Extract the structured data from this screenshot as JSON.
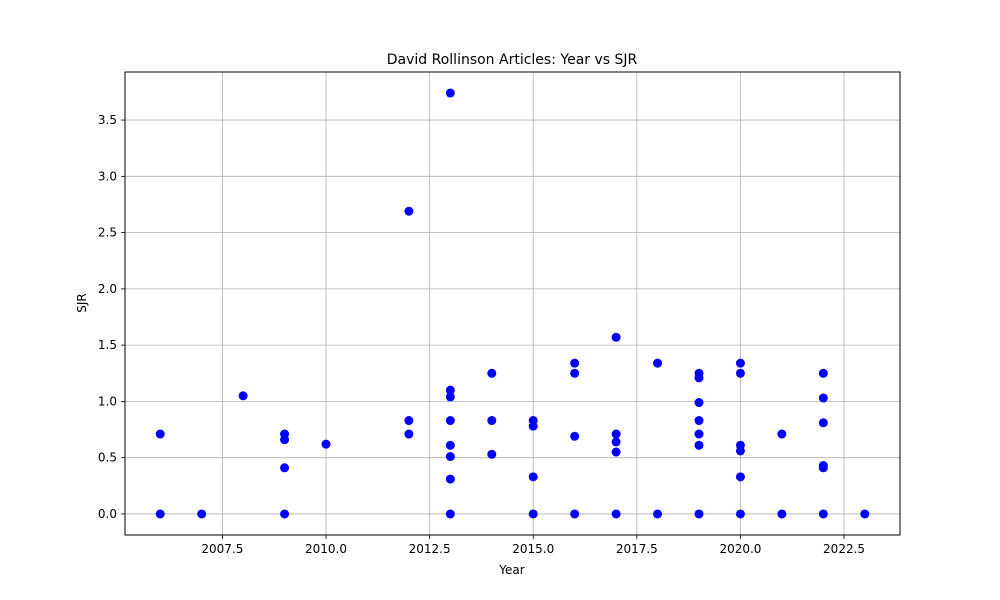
{
  "chart_data": {
    "type": "scatter",
    "title": "David Rollinson Articles: Year vs SJR",
    "xlabel": "Year",
    "ylabel": "SJR",
    "xlim": [
      2005.15,
      2023.85
    ],
    "ylim": [
      -0.187,
      3.927
    ],
    "xticks": [
      2007.5,
      2010.0,
      2012.5,
      2015.0,
      2017.5,
      2020.0,
      2022.5
    ],
    "xtick_labels": [
      "2007.5",
      "2010.0",
      "2012.5",
      "2015.0",
      "2017.5",
      "2020.0",
      "2022.5"
    ],
    "yticks": [
      0.0,
      0.5,
      1.0,
      1.5,
      2.0,
      2.5,
      3.0,
      3.5
    ],
    "ytick_labels": [
      "0.0",
      "0.5",
      "1.0",
      "1.5",
      "2.0",
      "2.5",
      "3.0",
      "3.5"
    ],
    "grid": true,
    "marker_color": "#0000ff",
    "points": [
      {
        "x": 2006,
        "y": 0.71
      },
      {
        "x": 2006,
        "y": 0.0
      },
      {
        "x": 2007,
        "y": 0.0
      },
      {
        "x": 2008,
        "y": 1.05
      },
      {
        "x": 2009,
        "y": 0.71
      },
      {
        "x": 2009,
        "y": 0.66
      },
      {
        "x": 2009,
        "y": 0.41
      },
      {
        "x": 2009,
        "y": 0.0
      },
      {
        "x": 2010,
        "y": 0.62
      },
      {
        "x": 2012,
        "y": 2.69
      },
      {
        "x": 2012,
        "y": 0.83
      },
      {
        "x": 2012,
        "y": 0.71
      },
      {
        "x": 2013,
        "y": 3.74
      },
      {
        "x": 2013,
        "y": 1.1
      },
      {
        "x": 2013,
        "y": 1.04
      },
      {
        "x": 2013,
        "y": 0.83
      },
      {
        "x": 2013,
        "y": 0.61
      },
      {
        "x": 2013,
        "y": 0.51
      },
      {
        "x": 2013,
        "y": 0.31
      },
      {
        "x": 2013,
        "y": 0.0
      },
      {
        "x": 2014,
        "y": 1.25
      },
      {
        "x": 2014,
        "y": 0.83
      },
      {
        "x": 2014,
        "y": 0.53
      },
      {
        "x": 2015,
        "y": 0.83
      },
      {
        "x": 2015,
        "y": 0.78
      },
      {
        "x": 2015,
        "y": 0.33
      },
      {
        "x": 2015,
        "y": 0.0
      },
      {
        "x": 2016,
        "y": 1.34
      },
      {
        "x": 2016,
        "y": 1.25
      },
      {
        "x": 2016,
        "y": 0.69
      },
      {
        "x": 2016,
        "y": 0.0
      },
      {
        "x": 2017,
        "y": 1.57
      },
      {
        "x": 2017,
        "y": 0.71
      },
      {
        "x": 2017,
        "y": 0.64
      },
      {
        "x": 2017,
        "y": 0.55
      },
      {
        "x": 2017,
        "y": 0.0
      },
      {
        "x": 2018,
        "y": 1.34
      },
      {
        "x": 2018,
        "y": 0.0
      },
      {
        "x": 2019,
        "y": 1.25
      },
      {
        "x": 2019,
        "y": 1.21
      },
      {
        "x": 2019,
        "y": 0.99
      },
      {
        "x": 2019,
        "y": 0.83
      },
      {
        "x": 2019,
        "y": 0.71
      },
      {
        "x": 2019,
        "y": 0.61
      },
      {
        "x": 2019,
        "y": 0.0
      },
      {
        "x": 2020,
        "y": 1.34
      },
      {
        "x": 2020,
        "y": 1.25
      },
      {
        "x": 2020,
        "y": 0.61
      },
      {
        "x": 2020,
        "y": 0.56
      },
      {
        "x": 2020,
        "y": 0.33
      },
      {
        "x": 2020,
        "y": 0.0
      },
      {
        "x": 2021,
        "y": 0.71
      },
      {
        "x": 2021,
        "y": 0.0
      },
      {
        "x": 2022,
        "y": 1.25
      },
      {
        "x": 2022,
        "y": 1.03
      },
      {
        "x": 2022,
        "y": 0.81
      },
      {
        "x": 2022,
        "y": 0.43
      },
      {
        "x": 2022,
        "y": 0.41
      },
      {
        "x": 2022,
        "y": 0.0
      },
      {
        "x": 2023,
        "y": 0.0
      }
    ]
  }
}
